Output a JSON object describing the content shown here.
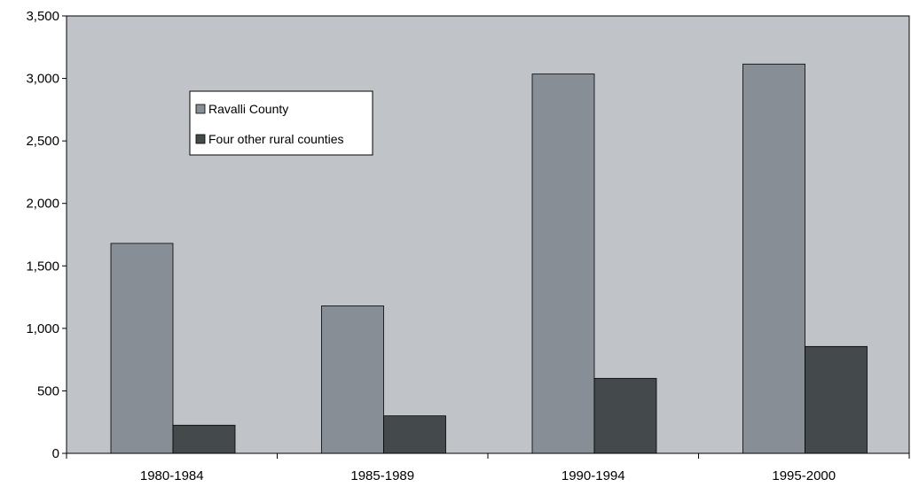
{
  "chart_data": {
    "type": "bar",
    "title": "",
    "xlabel": "",
    "ylabel": "",
    "categories": [
      "1980-1984",
      "1985-1989",
      "1990-1994",
      "1995-2000"
    ],
    "series": [
      {
        "name": "Ravalli County",
        "values": [
          1680,
          1180,
          3035,
          3115
        ],
        "color": "#878e96"
      },
      {
        "name": "Four other rural counties",
        "values": [
          225,
          300,
          600,
          855
        ],
        "color": "#444a4b"
      }
    ],
    "ylim": [
      0,
      3500
    ],
    "yticks": [
      "0",
      "500",
      "1,000",
      "1,500",
      "2,000",
      "2,500",
      "3,000",
      "3,500"
    ],
    "legend_position": "top-left",
    "grid": false,
    "plot_background": "#c0c3c8"
  }
}
